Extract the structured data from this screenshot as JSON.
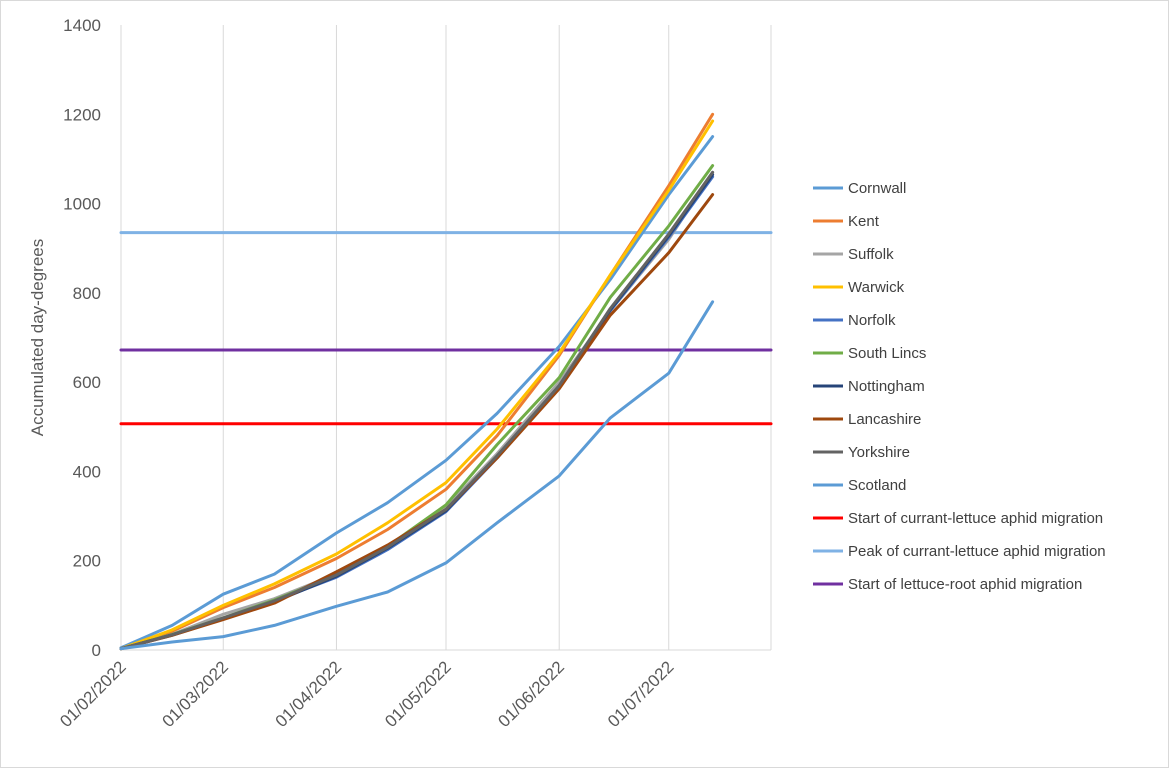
{
  "chart_data": {
    "type": "line",
    "title": "",
    "xlabel": "",
    "ylabel": "Accumulated day-degrees",
    "ylim": [
      0,
      1400
    ],
    "yticks": [
      0,
      200,
      400,
      600,
      800,
      1000,
      1200,
      1400
    ],
    "xlim": [
      "2022-02-01",
      "2022-07-29"
    ],
    "xticks": [
      {
        "date": "2022-02-01",
        "label": "01/02/2022"
      },
      {
        "date": "2022-03-01",
        "label": "01/03/2022"
      },
      {
        "date": "2022-04-01",
        "label": "01/04/2022"
      },
      {
        "date": "2022-05-01",
        "label": "01/05/2022"
      },
      {
        "date": "2022-06-01",
        "label": "01/06/2022"
      },
      {
        "date": "2022-07-01",
        "label": "01/07/2022"
      }
    ],
    "grid": {
      "vertical": true,
      "horizontal": false
    },
    "legend_position": "right",
    "series": [
      {
        "name": "Cornwall",
        "color": "#5B9BD5",
        "points": [
          [
            "2022-02-01",
            5
          ],
          [
            "2022-02-15",
            55
          ],
          [
            "2022-03-01",
            125
          ],
          [
            "2022-03-15",
            170
          ],
          [
            "2022-04-01",
            262
          ],
          [
            "2022-04-15",
            330
          ],
          [
            "2022-05-01",
            425
          ],
          [
            "2022-05-15",
            530
          ],
          [
            "2022-06-01",
            680
          ],
          [
            "2022-06-15",
            830
          ],
          [
            "2022-07-01",
            1020
          ],
          [
            "2022-07-13",
            1150
          ]
        ]
      },
      {
        "name": "Kent",
        "color": "#ED7D31",
        "points": [
          [
            "2022-02-01",
            3
          ],
          [
            "2022-02-15",
            42
          ],
          [
            "2022-03-01",
            95
          ],
          [
            "2022-03-15",
            140
          ],
          [
            "2022-04-01",
            205
          ],
          [
            "2022-04-15",
            270
          ],
          [
            "2022-05-01",
            360
          ],
          [
            "2022-05-15",
            480
          ],
          [
            "2022-06-01",
            660
          ],
          [
            "2022-06-15",
            840
          ],
          [
            "2022-07-01",
            1040
          ],
          [
            "2022-07-13",
            1200
          ]
        ]
      },
      {
        "name": "Suffolk",
        "color": "#A5A5A5",
        "points": [
          [
            "2022-02-01",
            3
          ],
          [
            "2022-02-15",
            35
          ],
          [
            "2022-03-01",
            80
          ],
          [
            "2022-03-15",
            115
          ],
          [
            "2022-04-01",
            170
          ],
          [
            "2022-04-15",
            230
          ],
          [
            "2022-05-01",
            320
          ],
          [
            "2022-05-15",
            440
          ],
          [
            "2022-06-01",
            600
          ],
          [
            "2022-06-15",
            760
          ],
          [
            "2022-07-01",
            920
          ],
          [
            "2022-07-13",
            1070
          ]
        ]
      },
      {
        "name": "Warwick",
        "color": "#FFC000",
        "points": [
          [
            "2022-02-01",
            3
          ],
          [
            "2022-02-15",
            45
          ],
          [
            "2022-03-01",
            100
          ],
          [
            "2022-03-15",
            148
          ],
          [
            "2022-04-01",
            215
          ],
          [
            "2022-04-15",
            285
          ],
          [
            "2022-05-01",
            375
          ],
          [
            "2022-05-15",
            495
          ],
          [
            "2022-06-01",
            665
          ],
          [
            "2022-06-15",
            840
          ],
          [
            "2022-07-01",
            1030
          ],
          [
            "2022-07-13",
            1185
          ]
        ]
      },
      {
        "name": "Norfolk",
        "color": "#4472C4",
        "points": [
          [
            "2022-02-01",
            3
          ],
          [
            "2022-02-15",
            33
          ],
          [
            "2022-03-01",
            70
          ],
          [
            "2022-03-15",
            110
          ],
          [
            "2022-04-01",
            163
          ],
          [
            "2022-04-15",
            225
          ],
          [
            "2022-05-01",
            310
          ],
          [
            "2022-05-15",
            430
          ],
          [
            "2022-06-01",
            590
          ],
          [
            "2022-06-15",
            760
          ],
          [
            "2022-07-01",
            925
          ],
          [
            "2022-07-13",
            1060
          ]
        ]
      },
      {
        "name": "South Lincs",
        "color": "#70AD47",
        "points": [
          [
            "2022-02-01",
            3
          ],
          [
            "2022-02-15",
            35
          ],
          [
            "2022-03-01",
            72
          ],
          [
            "2022-03-15",
            112
          ],
          [
            "2022-04-01",
            168
          ],
          [
            "2022-04-15",
            232
          ],
          [
            "2022-05-01",
            325
          ],
          [
            "2022-05-15",
            460
          ],
          [
            "2022-06-01",
            610
          ],
          [
            "2022-06-15",
            790
          ],
          [
            "2022-07-01",
            950
          ],
          [
            "2022-07-13",
            1085
          ]
        ]
      },
      {
        "name": "Nottingham",
        "color": "#264478",
        "points": [
          [
            "2022-02-01",
            3
          ],
          [
            "2022-02-15",
            34
          ],
          [
            "2022-03-01",
            70
          ],
          [
            "2022-03-15",
            108
          ],
          [
            "2022-04-01",
            165
          ],
          [
            "2022-04-15",
            228
          ],
          [
            "2022-05-01",
            312
          ],
          [
            "2022-05-15",
            432
          ],
          [
            "2022-06-01",
            592
          ],
          [
            "2022-06-15",
            762
          ],
          [
            "2022-07-01",
            928
          ],
          [
            "2022-07-13",
            1065
          ]
        ]
      },
      {
        "name": "Lancashire",
        "color": "#9E480E",
        "points": [
          [
            "2022-02-01",
            3
          ],
          [
            "2022-02-15",
            33
          ],
          [
            "2022-03-01",
            68
          ],
          [
            "2022-03-15",
            105
          ],
          [
            "2022-04-01",
            175
          ],
          [
            "2022-04-15",
            235
          ],
          [
            "2022-05-01",
            315
          ],
          [
            "2022-05-15",
            430
          ],
          [
            "2022-06-01",
            585
          ],
          [
            "2022-06-15",
            750
          ],
          [
            "2022-07-01",
            890
          ],
          [
            "2022-07-13",
            1020
          ]
        ]
      },
      {
        "name": "Yorkshire",
        "color": "#636363",
        "points": [
          [
            "2022-02-01",
            3
          ],
          [
            "2022-02-15",
            34
          ],
          [
            "2022-03-01",
            72
          ],
          [
            "2022-03-15",
            110
          ],
          [
            "2022-04-01",
            168
          ],
          [
            "2022-04-15",
            230
          ],
          [
            "2022-05-01",
            315
          ],
          [
            "2022-05-15",
            435
          ],
          [
            "2022-06-01",
            592
          ],
          [
            "2022-06-15",
            765
          ],
          [
            "2022-07-01",
            932
          ],
          [
            "2022-07-13",
            1070
          ]
        ]
      },
      {
        "name": "Scotland",
        "color": "#5B9BD5",
        "points": [
          [
            "2022-02-01",
            3
          ],
          [
            "2022-02-15",
            18
          ],
          [
            "2022-03-01",
            30
          ],
          [
            "2022-03-15",
            55
          ],
          [
            "2022-04-01",
            98
          ],
          [
            "2022-04-15",
            130
          ],
          [
            "2022-05-01",
            195
          ],
          [
            "2022-05-15",
            285
          ],
          [
            "2022-06-01",
            390
          ],
          [
            "2022-06-15",
            520
          ],
          [
            "2022-07-01",
            620
          ],
          [
            "2022-07-13",
            780
          ]
        ]
      },
      {
        "name": "Start of currant-lettuce aphid migration",
        "color": "#FF0000",
        "points": [
          [
            "2022-02-01",
            507
          ],
          [
            "2022-07-29",
            507
          ]
        ]
      },
      {
        "name": "Peak of currant-lettuce aphid migration",
        "color": "#7FB2E5",
        "points": [
          [
            "2022-02-01",
            935
          ],
          [
            "2022-07-29",
            935
          ]
        ]
      },
      {
        "name": "Start of lettuce-root aphid migration",
        "color": "#7030A0",
        "points": [
          [
            "2022-02-01",
            672
          ],
          [
            "2022-07-29",
            672
          ]
        ]
      }
    ],
    "legend_order": [
      0,
      1,
      2,
      3,
      4,
      5,
      6,
      7,
      8,
      9,
      10,
      11,
      12
    ]
  }
}
